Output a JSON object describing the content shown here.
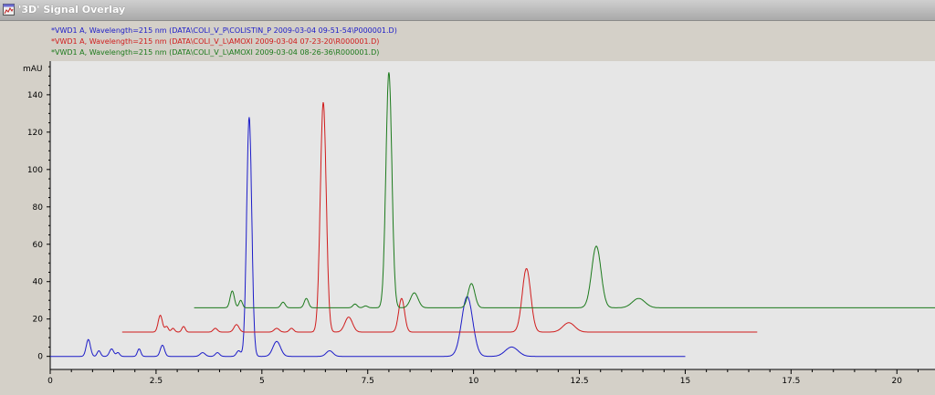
{
  "window": {
    "title": "'3D' Signal Overlay",
    "icon": "chart-window-icon"
  },
  "legend": {
    "entries": [
      {
        "label": "*VWD1 A, Wavelength=215 nm (DATA\\COLI_V_P\\COLISTIN_P 2009-03-04 09-51-54\\P000001.D)",
        "color": "#1c1cc8"
      },
      {
        "label": "*VWD1 A, Wavelength=215 nm (DATA\\COLI_V_L\\AMOXI 2009-03-04 07-23-20\\R000001.D)",
        "color": "#d01c1c"
      },
      {
        "label": "*VWD1 A, Wavelength=215 nm (DATA\\COLI_V_L\\AMOXI 2009-03-04 08-26-36\\R000001.D)",
        "color": "#1c7a1c"
      }
    ]
  },
  "chart_data": {
    "type": "line",
    "title": "",
    "xlabel": "",
    "ylabel": "mAU",
    "xlim": [
      0,
      20.9
    ],
    "ylim": [
      -7,
      158
    ],
    "x_ticks": [
      "0",
      "2.5",
      "5",
      "7.5",
      "10",
      "12.5",
      "15",
      "17.5",
      "20"
    ],
    "x_tick_values": [
      0,
      2.5,
      5,
      7.5,
      10,
      12.5,
      15,
      17.5,
      20
    ],
    "y_ticks": [
      "0",
      "20",
      "40",
      "60",
      "80",
      "100",
      "120",
      "140"
    ],
    "y_tick_values": [
      0,
      20,
      40,
      60,
      80,
      100,
      120,
      140
    ],
    "grid": false,
    "series": [
      {
        "color": "#1c1cc8",
        "x_range": [
          0,
          15.0
        ],
        "baseline": 0,
        "peaks": [
          {
            "x": 0.9,
            "h": 9,
            "w": 0.05
          },
          {
            "x": 1.15,
            "h": 3,
            "w": 0.04
          },
          {
            "x": 1.45,
            "h": 4,
            "w": 0.05
          },
          {
            "x": 1.6,
            "h": 2,
            "w": 0.04
          },
          {
            "x": 2.1,
            "h": 4,
            "w": 0.04
          },
          {
            "x": 2.65,
            "h": 6,
            "w": 0.05
          },
          {
            "x": 3.6,
            "h": 2,
            "w": 0.06
          },
          {
            "x": 3.95,
            "h": 2,
            "w": 0.05
          },
          {
            "x": 4.45,
            "h": 3,
            "w": 0.05
          },
          {
            "x": 4.7,
            "h": 128,
            "w": 0.06
          },
          {
            "x": 5.35,
            "h": 8,
            "w": 0.09
          },
          {
            "x": 6.6,
            "h": 3,
            "w": 0.08
          },
          {
            "x": 9.85,
            "h": 32,
            "w": 0.13
          },
          {
            "x": 10.9,
            "h": 5,
            "w": 0.15
          }
        ]
      },
      {
        "color": "#d01c1c",
        "x_range": [
          1.7,
          16.7
        ],
        "baseline": 13,
        "peaks": [
          {
            "x": 2.6,
            "h": 9,
            "w": 0.05
          },
          {
            "x": 2.75,
            "h": 3,
            "w": 0.04
          },
          {
            "x": 2.9,
            "h": 2,
            "w": 0.04
          },
          {
            "x": 3.15,
            "h": 3,
            "w": 0.04
          },
          {
            "x": 3.9,
            "h": 2,
            "w": 0.05
          },
          {
            "x": 4.4,
            "h": 4,
            "w": 0.06
          },
          {
            "x": 5.35,
            "h": 2,
            "w": 0.06
          },
          {
            "x": 5.7,
            "h": 2,
            "w": 0.05
          },
          {
            "x": 6.45,
            "h": 123,
            "w": 0.07
          },
          {
            "x": 7.05,
            "h": 8,
            "w": 0.09
          },
          {
            "x": 8.3,
            "h": 18,
            "w": 0.07
          },
          {
            "x": 11.25,
            "h": 34,
            "w": 0.1
          },
          {
            "x": 12.25,
            "h": 5,
            "w": 0.14
          }
        ]
      },
      {
        "color": "#1c7a1c",
        "x_range": [
          3.4,
          20.9
        ],
        "baseline": 26,
        "peaks": [
          {
            "x": 4.3,
            "h": 9,
            "w": 0.05
          },
          {
            "x": 4.5,
            "h": 4,
            "w": 0.04
          },
          {
            "x": 5.5,
            "h": 3,
            "w": 0.05
          },
          {
            "x": 6.05,
            "h": 5,
            "w": 0.05
          },
          {
            "x": 7.2,
            "h": 2,
            "w": 0.05
          },
          {
            "x": 7.45,
            "h": 1,
            "w": 0.05
          },
          {
            "x": 8.0,
            "h": 126,
            "w": 0.07
          },
          {
            "x": 8.6,
            "h": 8,
            "w": 0.09
          },
          {
            "x": 9.95,
            "h": 13,
            "w": 0.08
          },
          {
            "x": 12.9,
            "h": 33,
            "w": 0.11
          },
          {
            "x": 13.9,
            "h": 5,
            "w": 0.15
          }
        ]
      }
    ]
  }
}
